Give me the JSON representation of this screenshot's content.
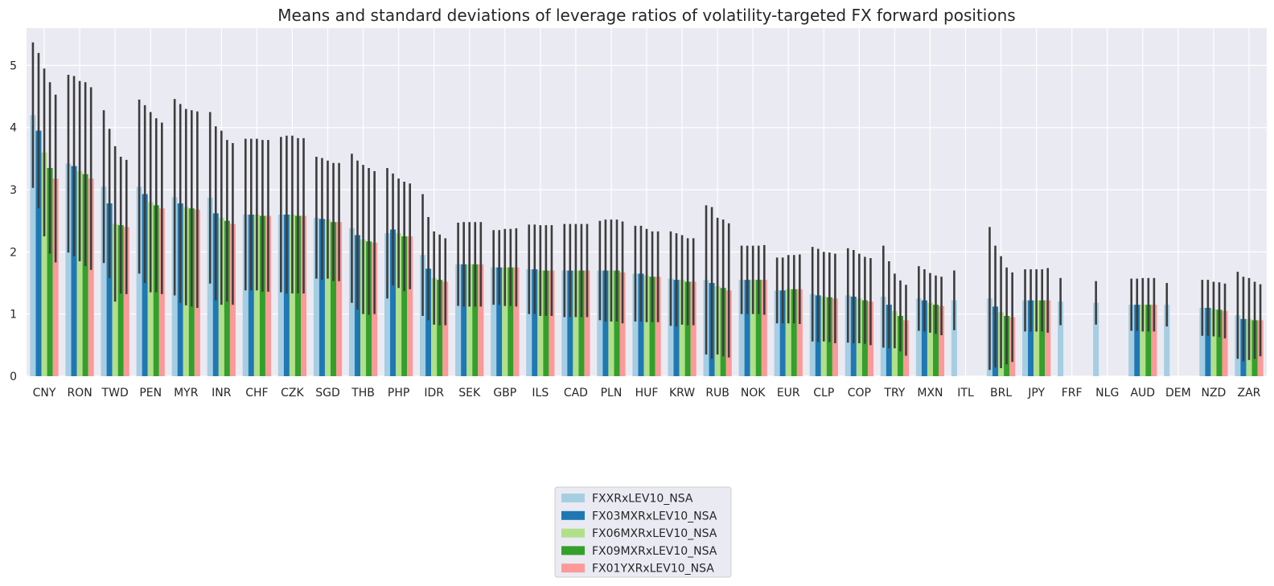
{
  "chart_data": {
    "type": "bar",
    "title": "Means and standard deviations of leverage ratios of volatility-targeted FX forward positions",
    "xlabel": "",
    "ylabel": "",
    "ylim": [
      0,
      5.6
    ],
    "yticks": [
      0,
      1,
      2,
      3,
      4,
      5
    ],
    "grid": true,
    "error_bars": "standard deviation",
    "legend_position": "bottom-center",
    "categories": [
      "CNY",
      "RON",
      "TWD",
      "PEN",
      "MYR",
      "INR",
      "CHF",
      "CZK",
      "SGD",
      "THB",
      "PHP",
      "IDR",
      "SEK",
      "GBP",
      "ILS",
      "CAD",
      "PLN",
      "HUF",
      "KRW",
      "RUB",
      "NOK",
      "EUR",
      "CLP",
      "COP",
      "TRY",
      "MXN",
      "ITL",
      "BRL",
      "JPY",
      "FRF",
      "NLG",
      "AUD",
      "DEM",
      "NZD",
      "ZAR"
    ],
    "series": [
      {
        "name": "FXXRxLEV10_NSA",
        "color": "#a6cee3",
        "values": [
          4.2,
          3.42,
          3.05,
          3.05,
          2.88,
          2.87,
          2.6,
          2.6,
          2.55,
          2.38,
          2.3,
          1.95,
          1.8,
          1.75,
          1.72,
          1.7,
          1.7,
          1.65,
          1.57,
          1.55,
          1.55,
          1.38,
          1.32,
          1.3,
          1.28,
          1.25,
          1.22,
          1.25,
          1.22,
          1.2,
          1.18,
          1.15,
          1.15,
          1.1,
          0.98
        ],
        "errors": [
          1.17,
          1.43,
          1.23,
          1.4,
          1.58,
          1.38,
          1.22,
          1.25,
          0.98,
          1.2,
          1.05,
          0.98,
          0.67,
          0.6,
          0.72,
          0.75,
          0.8,
          0.77,
          0.76,
          1.2,
          0.55,
          0.53,
          0.76,
          0.76,
          0.82,
          0.52,
          0.48,
          1.15,
          0.5,
          0.38,
          0.35,
          0.42,
          0.35,
          0.45,
          0.7
        ]
      },
      {
        "name": "FX03MXRxLEV10_NSA",
        "color": "#1f78b4",
        "values": [
          3.95,
          3.38,
          2.78,
          2.93,
          2.78,
          2.62,
          2.6,
          2.6,
          2.53,
          2.27,
          2.36,
          1.73,
          1.8,
          1.75,
          1.72,
          1.7,
          1.7,
          1.65,
          1.55,
          1.5,
          1.55,
          1.38,
          1.3,
          1.28,
          1.15,
          1.22,
          null,
          1.12,
          1.22,
          null,
          null,
          1.15,
          null,
          1.1,
          0.92
        ],
        "errors": [
          1.25,
          1.45,
          1.2,
          1.43,
          1.6,
          1.4,
          1.22,
          1.27,
          0.98,
          1.2,
          0.9,
          0.83,
          0.68,
          0.6,
          0.72,
          0.75,
          0.82,
          0.77,
          0.75,
          1.22,
          0.55,
          0.53,
          0.75,
          0.75,
          0.7,
          0.5,
          null,
          0.98,
          0.5,
          null,
          null,
          0.42,
          null,
          0.45,
          0.68
        ]
      },
      {
        "name": "FX06MXRxLEV10_NSA",
        "color": "#b2df8a",
        "values": [
          3.6,
          3.3,
          2.45,
          2.8,
          2.72,
          2.55,
          2.6,
          2.6,
          2.52,
          2.2,
          2.3,
          1.58,
          1.8,
          1.75,
          1.7,
          1.7,
          1.7,
          1.62,
          1.55,
          1.45,
          1.55,
          1.4,
          1.28,
          1.25,
          1.05,
          1.18,
          null,
          1.03,
          1.22,
          null,
          null,
          1.15,
          null,
          1.08,
          0.92
        ],
        "errors": [
          1.35,
          1.45,
          1.25,
          1.45,
          1.58,
          1.4,
          1.22,
          1.27,
          0.95,
          1.2,
          0.88,
          0.75,
          0.68,
          0.62,
          0.73,
          0.75,
          0.82,
          0.75,
          0.72,
          1.1,
          0.55,
          0.55,
          0.72,
          0.72,
          0.6,
          0.48,
          null,
          0.9,
          0.5,
          null,
          null,
          0.43,
          null,
          0.44,
          0.66
        ]
      },
      {
        "name": "FX09MXRxLEV10_NSA",
        "color": "#33a02c",
        "values": [
          3.35,
          3.25,
          2.43,
          2.75,
          2.7,
          2.5,
          2.58,
          2.58,
          2.48,
          2.17,
          2.25,
          1.55,
          1.8,
          1.75,
          1.7,
          1.7,
          1.7,
          1.6,
          1.52,
          1.42,
          1.55,
          1.4,
          1.27,
          1.22,
          0.97,
          1.15,
          null,
          0.97,
          1.22,
          null,
          null,
          1.15,
          null,
          1.07,
          0.9
        ],
        "errors": [
          1.38,
          1.48,
          1.1,
          1.4,
          1.58,
          1.3,
          1.22,
          1.25,
          0.95,
          1.18,
          0.88,
          0.73,
          0.68,
          0.62,
          0.73,
          0.75,
          0.82,
          0.73,
          0.7,
          1.1,
          0.55,
          0.55,
          0.72,
          0.7,
          0.57,
          0.47,
          null,
          0.78,
          0.5,
          null,
          null,
          0.43,
          null,
          0.44,
          0.62
        ]
      },
      {
        "name": "FX01YXRxLEV10_NSA",
        "color": "#fb9a99",
        "values": [
          3.18,
          3.18,
          2.4,
          2.7,
          2.68,
          2.45,
          2.58,
          2.58,
          2.48,
          2.15,
          2.25,
          1.52,
          1.8,
          1.75,
          1.7,
          1.7,
          1.67,
          1.6,
          1.52,
          1.38,
          1.55,
          1.4,
          1.25,
          1.2,
          0.9,
          1.13,
          null,
          0.95,
          1.22,
          null,
          null,
          1.15,
          null,
          1.05,
          0.9
        ],
        "errors": [
          1.35,
          1.47,
          1.08,
          1.38,
          1.58,
          1.3,
          1.22,
          1.25,
          0.95,
          1.15,
          0.85,
          0.7,
          0.68,
          0.63,
          0.73,
          0.75,
          0.82,
          0.73,
          0.7,
          1.08,
          0.56,
          0.56,
          0.72,
          0.7,
          0.57,
          0.47,
          null,
          0.72,
          0.52,
          null,
          null,
          0.43,
          null,
          0.44,
          0.58
        ]
      }
    ]
  }
}
